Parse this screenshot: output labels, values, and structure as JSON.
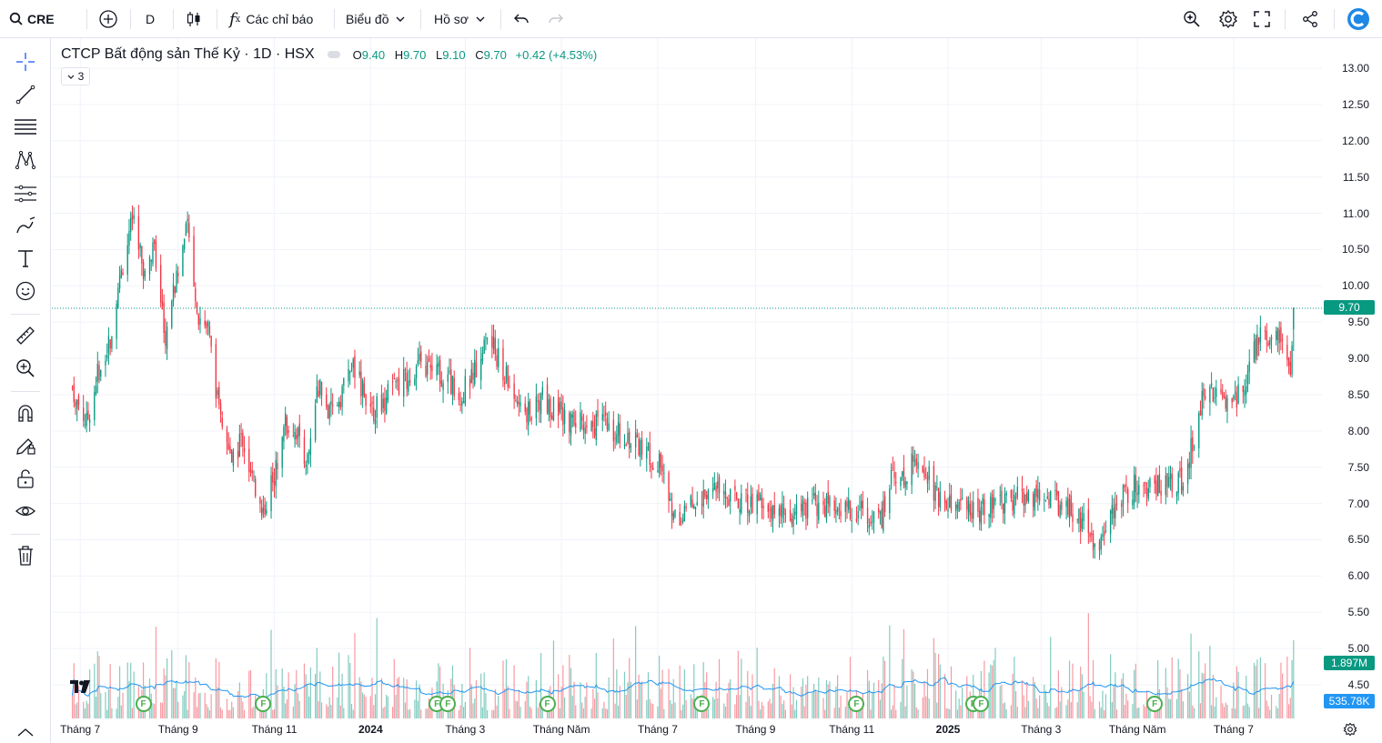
{
  "toolbar": {
    "symbol": "CRE",
    "interval": "D",
    "indicators_label": "Các chỉ báo",
    "chart_menu_label": "Biểu đồ",
    "profile_label": "Hồ sơ"
  },
  "legend": {
    "title": "CTCP Bất động sản Thế Kỷ · 1D · HSX",
    "o_label": "O",
    "o_value": "9.40",
    "h_label": "H",
    "h_value": "9.70",
    "l_label": "L",
    "l_value": "9.10",
    "c_label": "C",
    "c_value": "9.70",
    "change": "+0.42 (+4.53%)",
    "collapsed_count": "3"
  },
  "price_axis": {
    "labels": [
      "13.00",
      "12.50",
      "12.00",
      "11.50",
      "11.00",
      "10.50",
      "10.00",
      "9.50",
      "9.00",
      "8.50",
      "8.00",
      "7.50",
      "7.00",
      "6.50",
      "6.00",
      "5.50",
      "5.00",
      "4.50"
    ],
    "last_price_tag": "9.70",
    "volume_tag": "1.897M",
    "volume_ma_tag": "535.78K"
  },
  "time_axis": {
    "labels": [
      "Tháng 7",
      "Tháng 9",
      "Tháng 11",
      "2024",
      "Tháng 3",
      "Tháng Năm",
      "Tháng 7",
      "Tháng 9",
      "Tháng 11",
      "2025",
      "Tháng 3",
      "Tháng Năm",
      "Tháng 7"
    ]
  },
  "events": {
    "marker_label": "F"
  },
  "colors": {
    "up": "#089981",
    "down": "#f23645",
    "volume_ma": "#2196f3",
    "accent": "#2962ff"
  },
  "chart_data": {
    "type": "candlestick",
    "title": "CTCP Bất động sản Thế Kỷ · 1D · HSX",
    "ylim": [
      4.3,
      13.2
    ],
    "anchors": [
      [
        "2023-06-26",
        8.6
      ],
      [
        "2023-07-05",
        8.1
      ],
      [
        "2023-07-12",
        8.8
      ],
      [
        "2023-07-20",
        9.3
      ],
      [
        "2023-07-28",
        10.3
      ],
      [
        "2023-08-03",
        10.9
      ],
      [
        "2023-08-10",
        10.2
      ],
      [
        "2023-08-17",
        10.5
      ],
      [
        "2023-08-24",
        9.3
      ],
      [
        "2023-08-31",
        10.1
      ],
      [
        "2023-09-07",
        10.8
      ],
      [
        "2023-09-14",
        9.6
      ],
      [
        "2023-09-20",
        9.4
      ],
      [
        "2023-09-27",
        8.3
      ],
      [
        "2023-10-04",
        7.6
      ],
      [
        "2023-10-12",
        7.9
      ],
      [
        "2023-10-19",
        7.2
      ],
      [
        "2023-10-25",
        6.9
      ],
      [
        "2023-11-01",
        7.4
      ],
      [
        "2023-11-08",
        8.1
      ],
      [
        "2023-11-15",
        8.0
      ],
      [
        "2023-11-22",
        7.6
      ],
      [
        "2023-11-29",
        8.6
      ],
      [
        "2023-12-06",
        8.2
      ],
      [
        "2023-12-13",
        8.5
      ],
      [
        "2023-12-20",
        8.9
      ],
      [
        "2024-01-03",
        8.3
      ],
      [
        "2024-01-17",
        8.6
      ],
      [
        "2024-01-31",
        8.9
      ],
      [
        "2024-02-14",
        8.8
      ],
      [
        "2024-02-28",
        8.5
      ],
      [
        "2024-03-08",
        8.9
      ],
      [
        "2024-03-15",
        9.3
      ],
      [
        "2024-03-22",
        9.0
      ],
      [
        "2024-03-29",
        8.6
      ],
      [
        "2024-04-05",
        8.3
      ],
      [
        "2024-04-12",
        8.2
      ],
      [
        "2024-04-19",
        8.5
      ],
      [
        "2024-04-26",
        8.3
      ],
      [
        "2024-05-10",
        8.1
      ],
      [
        "2024-05-24",
        8.1
      ],
      [
        "2024-06-07",
        8.0
      ],
      [
        "2024-06-21",
        7.8
      ],
      [
        "2024-07-03",
        7.5
      ],
      [
        "2024-07-10",
        6.9
      ],
      [
        "2024-07-17",
        6.8
      ],
      [
        "2024-07-31",
        7.2
      ],
      [
        "2024-08-14",
        7.1
      ],
      [
        "2024-08-28",
        7.0
      ],
      [
        "2024-09-11",
        6.9
      ],
      [
        "2024-09-25",
        6.8
      ],
      [
        "2024-10-09",
        7.0
      ],
      [
        "2024-10-23",
        6.9
      ],
      [
        "2024-11-06",
        6.9
      ],
      [
        "2024-11-20",
        6.8
      ],
      [
        "2024-11-27",
        7.5
      ],
      [
        "2024-12-04",
        7.3
      ],
      [
        "2024-12-11",
        7.7
      ],
      [
        "2024-12-18",
        7.5
      ],
      [
        "2024-12-25",
        7.1
      ],
      [
        "2025-01-08",
        7.0
      ],
      [
        "2025-01-22",
        6.9
      ],
      [
        "2025-02-05",
        7.0
      ],
      [
        "2025-02-19",
        7.1
      ],
      [
        "2025-03-05",
        7.1
      ],
      [
        "2025-03-19",
        6.9
      ],
      [
        "2025-03-31",
        6.7
      ],
      [
        "2025-04-04",
        6.3
      ],
      [
        "2025-04-11",
        6.8
      ],
      [
        "2025-04-18",
        7.0
      ],
      [
        "2025-05-02",
        7.3
      ],
      [
        "2025-05-16",
        7.2
      ],
      [
        "2025-05-30",
        7.3
      ],
      [
        "2025-06-06",
        7.9
      ],
      [
        "2025-06-13",
        8.6
      ],
      [
        "2025-06-20",
        8.5
      ],
      [
        "2025-06-27",
        8.4
      ],
      [
        "2025-07-04",
        8.5
      ],
      [
        "2025-07-11",
        8.9
      ],
      [
        "2025-07-18",
        9.3
      ],
      [
        "2025-07-25",
        9.2
      ],
      [
        "2025-08-01",
        9.4
      ],
      [
        "2025-08-06",
        8.8
      ],
      [
        "2025-08-08",
        9.7
      ]
    ]
  }
}
